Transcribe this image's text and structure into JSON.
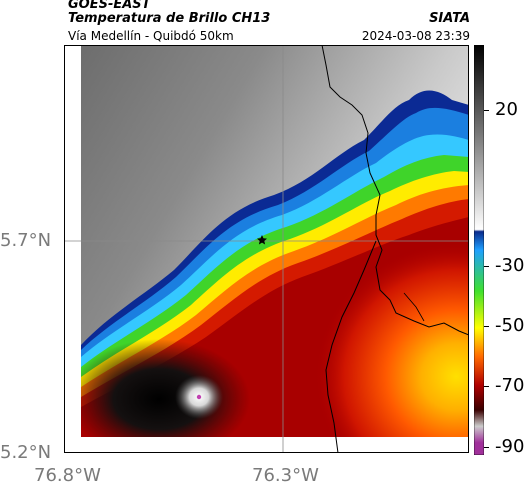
{
  "header": {
    "satellite": "GOES-EAST",
    "product": "Temperatura de Brillo CH13",
    "route": "Vía Medellín - Quibdó 50km",
    "agency": "SIATA",
    "datetime": "2024-03-08 23:39"
  },
  "map": {
    "lat_labels": [
      "5.7°N",
      "5.2°N"
    ],
    "lon_labels": [
      "76.8°W",
      "76.3°W"
    ],
    "marker": "star-icon"
  },
  "colorbar": {
    "ticks": [
      "20",
      "-30",
      "-50",
      "-70",
      "-90"
    ],
    "unit_scale": "brightness temperature °C",
    "colors": [
      "#000000",
      "#7a7a7a",
      "#ffffff",
      "#0a2a8c",
      "#1fa0ff",
      "#3fe02f",
      "#ffff00",
      "#ff6a00",
      "#b00000",
      "#3a0000",
      "#cccccc",
      "#a0309a"
    ]
  }
}
